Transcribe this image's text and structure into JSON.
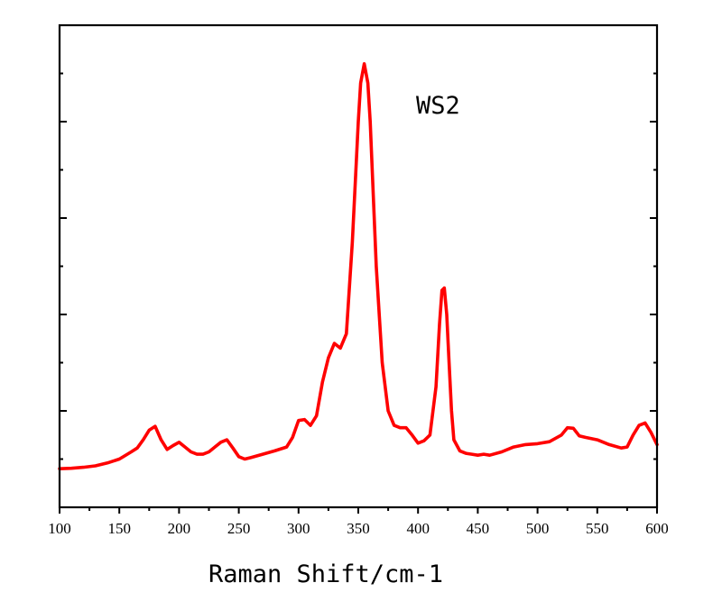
{
  "chart_data": {
    "type": "line",
    "title": "",
    "xlabel": "Raman Shift/cm-1",
    "ylabel": "",
    "annotation": "WS2",
    "xlim": [
      100,
      600
    ],
    "ylim": [
      0,
      100
    ],
    "grid": false,
    "legend": "none",
    "x_ticks": [
      100,
      150,
      200,
      250,
      300,
      350,
      400,
      450,
      500,
      550,
      600
    ],
    "series": [
      {
        "color": "#ff0000",
        "x": [
          100,
          110,
          120,
          130,
          140,
          150,
          160,
          165,
          170,
          175,
          180,
          185,
          190,
          195,
          200,
          205,
          210,
          215,
          220,
          225,
          230,
          235,
          240,
          245,
          250,
          255,
          260,
          270,
          280,
          290,
          295,
          300,
          305,
          310,
          315,
          320,
          325,
          330,
          335,
          340,
          345,
          350,
          352,
          355,
          358,
          360,
          365,
          370,
          375,
          380,
          385,
          390,
          395,
          400,
          405,
          410,
          415,
          418,
          420,
          422,
          424,
          426,
          428,
          430,
          435,
          440,
          445,
          450,
          455,
          460,
          470,
          480,
          490,
          500,
          510,
          520,
          525,
          530,
          535,
          540,
          550,
          560,
          570,
          575,
          580,
          585,
          590,
          595,
          600
        ],
        "y": [
          8.0,
          8.1,
          8.3,
          8.6,
          9.2,
          10.0,
          11.5,
          12.3,
          14.0,
          16.0,
          16.8,
          14.0,
          12.0,
          12.8,
          13.5,
          12.5,
          11.5,
          11.0,
          11.0,
          11.5,
          12.5,
          13.5,
          14.0,
          12.3,
          10.5,
          10.0,
          10.3,
          11.0,
          11.7,
          12.5,
          14.5,
          18.0,
          18.2,
          17.0,
          19.0,
          26.0,
          31.0,
          34.0,
          33.0,
          36.0,
          55.0,
          80.0,
          88.0,
          92.0,
          88.0,
          80.0,
          50.0,
          30.0,
          20.0,
          17.0,
          16.5,
          16.5,
          15.0,
          13.3,
          13.8,
          15.0,
          25.0,
          38.0,
          45.0,
          45.5,
          40.0,
          30.0,
          20.0,
          14.0,
          11.7,
          11.2,
          11.0,
          10.8,
          11.0,
          10.8,
          11.5,
          12.5,
          13.0,
          13.2,
          13.6,
          15.0,
          16.5,
          16.4,
          14.8,
          14.5,
          14.0,
          13.0,
          12.3,
          12.5,
          15.0,
          17.0,
          17.5,
          15.5,
          13.0
        ]
      }
    ]
  }
}
